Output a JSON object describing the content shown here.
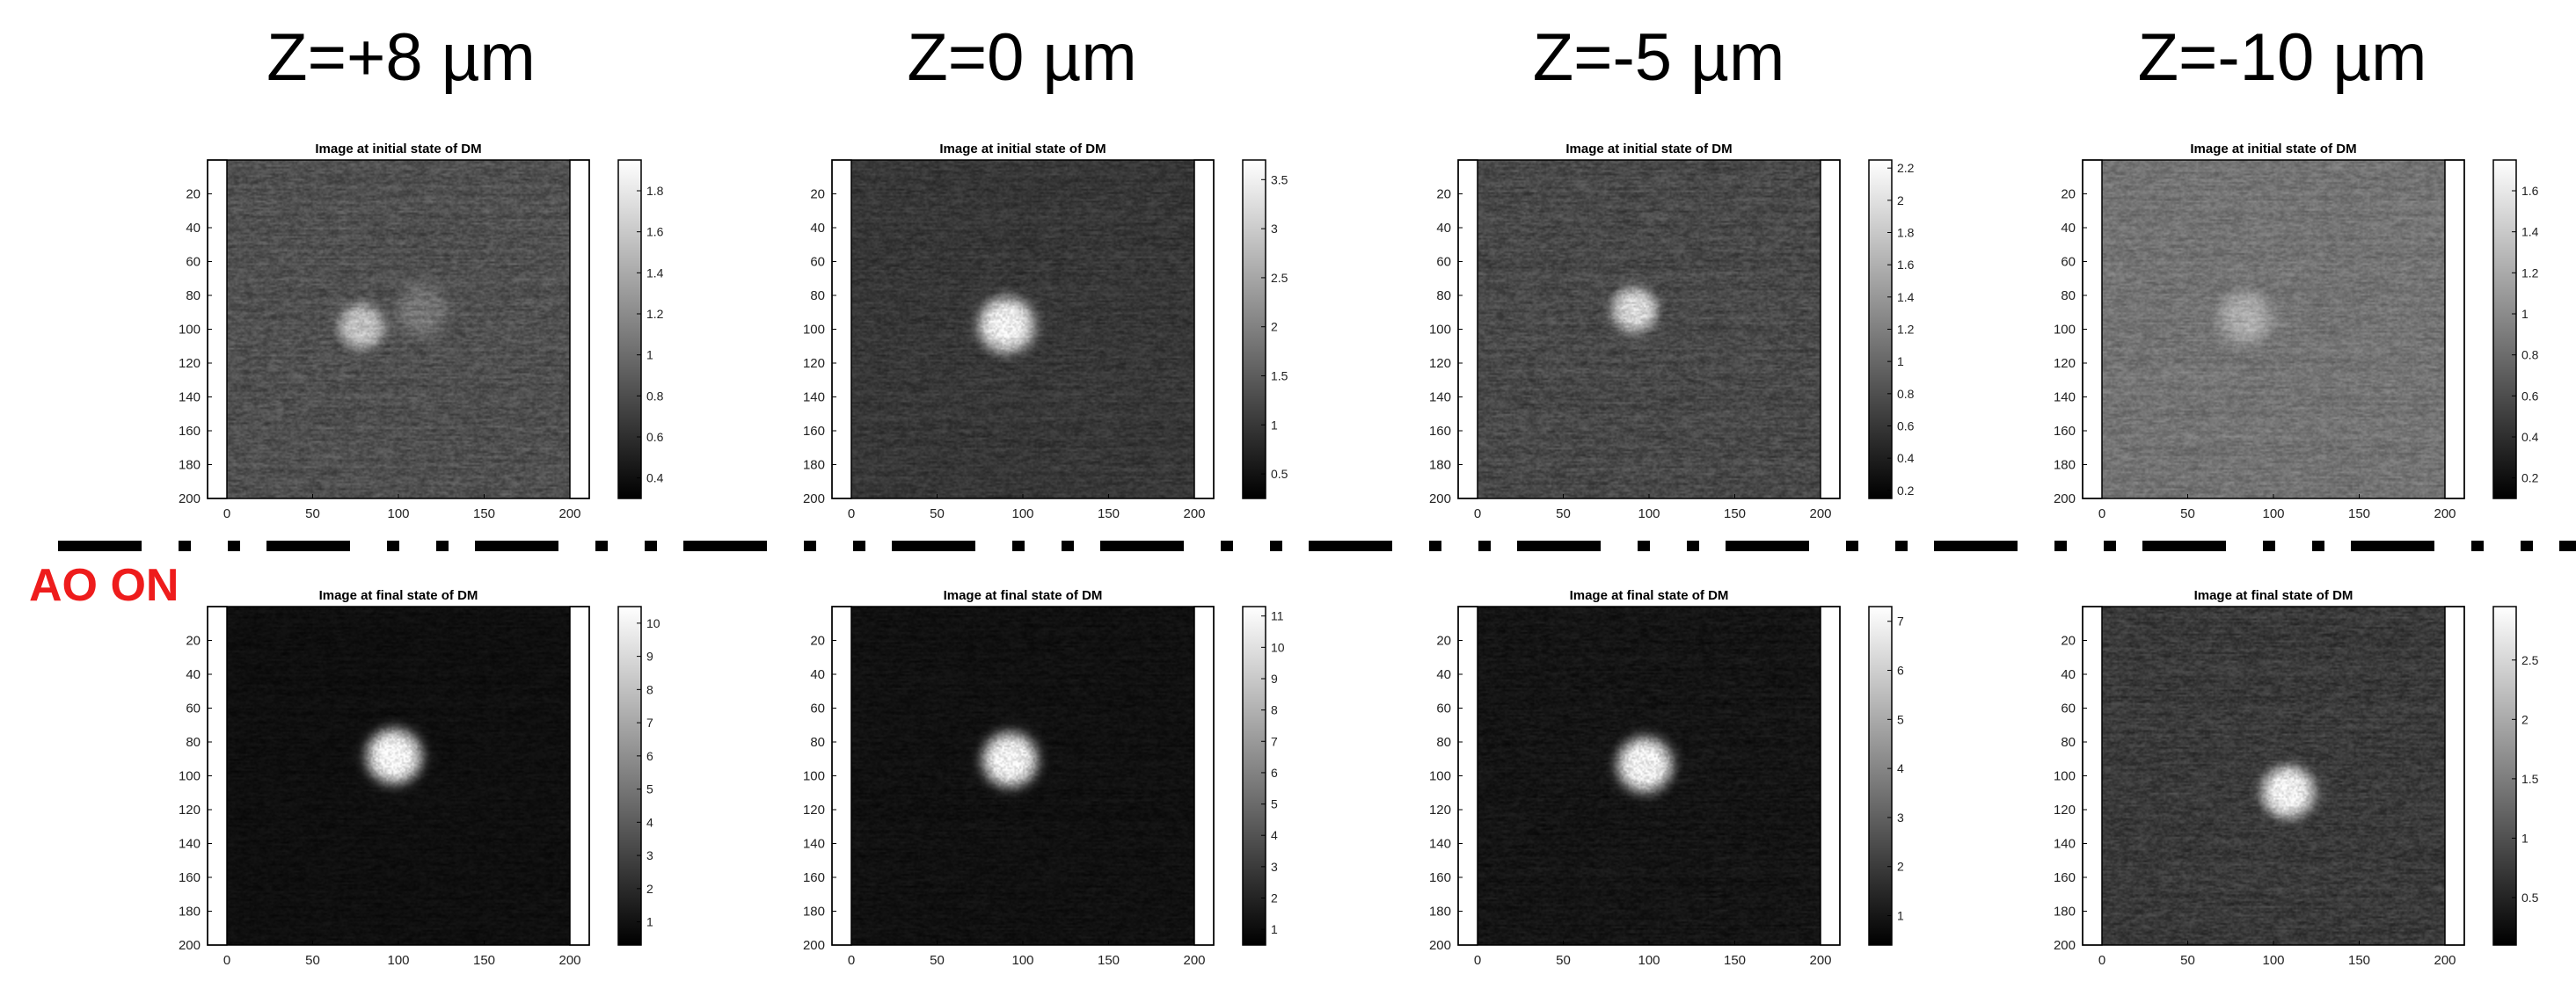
{
  "row_label": "AO ON",
  "colorbar_colors": {
    "low": "#000000",
    "high": "#ffffff"
  },
  "chart_data": [
    {
      "type": "heatmap",
      "row": 0,
      "col": 0,
      "column_title": "Z=+8 µm",
      "title": "Image at initial state of DM",
      "x_ticks": [
        0,
        50,
        100,
        150,
        200
      ],
      "y_ticks": [
        20,
        40,
        60,
        80,
        100,
        120,
        140,
        160,
        180,
        200
      ],
      "xlim": [
        0,
        200
      ],
      "ylim": [
        200,
        0
      ],
      "colorbar": {
        "ticks": [
          "0.4",
          "0.6",
          "0.8",
          "1",
          "1.2",
          "1.4",
          "1.6",
          "1.8"
        ],
        "range": [
          0.3,
          1.95
        ]
      },
      "background_level": 0.82,
      "noise": 0.13,
      "spots": [
        {
          "x": 78,
          "y": 98,
          "radius": 14,
          "peak": 1.55
        },
        {
          "x": 113,
          "y": 88,
          "radius": 16,
          "peak": 1.05
        }
      ]
    },
    {
      "type": "heatmap",
      "row": 0,
      "col": 1,
      "title": "Image at initial state of DM",
      "column_title": "Z=0 µm",
      "x_ticks": [
        0,
        50,
        100,
        150,
        200
      ],
      "y_ticks": [
        20,
        40,
        60,
        80,
        100,
        120,
        140,
        160,
        180,
        200
      ],
      "xlim": [
        0,
        200
      ],
      "ylim": [
        200,
        0
      ],
      "colorbar": {
        "ticks": [
          "0.5",
          "1",
          "1.5",
          "2",
          "2.5",
          "3",
          "3.5"
        ],
        "range": [
          0.25,
          3.7
        ]
      },
      "background_level": 1.0,
      "noise": 0.2,
      "spots": [
        {
          "x": 90,
          "y": 97,
          "radius": 17,
          "peak": 3.5
        }
      ]
    },
    {
      "type": "heatmap",
      "row": 0,
      "col": 2,
      "title": "Image at initial state of DM",
      "column_title": "Z=-5 µm",
      "x_ticks": [
        0,
        50,
        100,
        150,
        200
      ],
      "y_ticks": [
        20,
        40,
        60,
        80,
        100,
        120,
        140,
        160,
        180,
        200
      ],
      "xlim": [
        0,
        200
      ],
      "ylim": [
        200,
        0
      ],
      "colorbar": {
        "ticks": [
          "0.2",
          "0.4",
          "0.6",
          "0.8",
          "1",
          "1.2",
          "1.4",
          "1.6",
          "1.8",
          "2",
          "2.2"
        ],
        "range": [
          0.15,
          2.25
        ]
      },
      "background_level": 0.75,
      "noise": 0.16,
      "spots": [
        {
          "x": 91,
          "y": 88,
          "radius": 14,
          "peak": 1.9
        }
      ]
    },
    {
      "type": "heatmap",
      "row": 0,
      "col": 3,
      "title": "Image at initial state of DM",
      "column_title": "Z=-10 µm",
      "x_ticks": [
        0,
        50,
        100,
        150,
        200
      ],
      "y_ticks": [
        20,
        40,
        60,
        80,
        100,
        120,
        140,
        160,
        180,
        200
      ],
      "xlim": [
        0,
        200
      ],
      "ylim": [
        200,
        0
      ],
      "colorbar": {
        "ticks": [
          "0.2",
          "0.4",
          "0.6",
          "0.8",
          "1",
          "1.2",
          "1.4",
          "1.6"
        ],
        "range": [
          0.1,
          1.75
        ]
      },
      "background_level": 0.85,
      "noise": 0.12,
      "spots": [
        {
          "x": 83,
          "y": 93,
          "radius": 16,
          "peak": 1.2
        }
      ]
    },
    {
      "type": "heatmap",
      "row": 1,
      "col": 0,
      "title": "Image at final state of DM",
      "x_ticks": [
        0,
        50,
        100,
        150,
        200
      ],
      "y_ticks": [
        20,
        40,
        60,
        80,
        100,
        120,
        140,
        160,
        180,
        200
      ],
      "xlim": [
        0,
        200
      ],
      "ylim": [
        200,
        0
      ],
      "colorbar": {
        "ticks": [
          "1",
          "2",
          "3",
          "4",
          "5",
          "6",
          "7",
          "8",
          "9",
          "10"
        ],
        "range": [
          0.3,
          10.5
        ]
      },
      "background_level": 0.9,
      "noise": 0.25,
      "spots": [
        {
          "x": 97,
          "y": 88,
          "radius": 17,
          "peak": 10.2
        }
      ]
    },
    {
      "type": "heatmap",
      "row": 1,
      "col": 1,
      "title": "Image at final state of DM",
      "x_ticks": [
        0,
        50,
        100,
        150,
        200
      ],
      "y_ticks": [
        20,
        40,
        60,
        80,
        100,
        120,
        140,
        160,
        180,
        200
      ],
      "xlim": [
        0,
        200
      ],
      "ylim": [
        200,
        0
      ],
      "colorbar": {
        "ticks": [
          "1",
          "2",
          "3",
          "4",
          "5",
          "6",
          "7",
          "8",
          "9",
          "10",
          "11"
        ],
        "range": [
          0.5,
          11.3
        ]
      },
      "background_level": 1.2,
      "noise": 0.3,
      "spots": [
        {
          "x": 92,
          "y": 90,
          "radius": 17,
          "peak": 10.8
        }
      ]
    },
    {
      "type": "heatmap",
      "row": 1,
      "col": 2,
      "title": "Image at final state of DM",
      "x_ticks": [
        0,
        50,
        100,
        150,
        200
      ],
      "y_ticks": [
        20,
        40,
        60,
        80,
        100,
        120,
        140,
        160,
        180,
        200
      ],
      "xlim": [
        0,
        200
      ],
      "ylim": [
        200,
        0
      ],
      "colorbar": {
        "ticks": [
          "1",
          "2",
          "3",
          "4",
          "5",
          "6",
          "7"
        ],
        "range": [
          0.4,
          7.3
        ]
      },
      "background_level": 0.95,
      "noise": 0.25,
      "spots": [
        {
          "x": 97,
          "y": 93,
          "radius": 17,
          "peak": 7.0
        }
      ]
    },
    {
      "type": "heatmap",
      "row": 1,
      "col": 3,
      "title": "Image at final state of DM",
      "x_ticks": [
        0,
        50,
        100,
        150,
        200
      ],
      "y_ticks": [
        20,
        40,
        60,
        80,
        100,
        120,
        140,
        160,
        180,
        200
      ],
      "xlim": [
        0,
        200
      ],
      "ylim": [
        200,
        0
      ],
      "colorbar": {
        "ticks": [
          "0.5",
          "1",
          "1.5",
          "2",
          "2.5"
        ],
        "range": [
          0.1,
          2.95
        ]
      },
      "background_level": 0.75,
      "noise": 0.2,
      "spots": [
        {
          "x": 108,
          "y": 109,
          "radius": 16,
          "peak": 2.8
        }
      ]
    }
  ]
}
